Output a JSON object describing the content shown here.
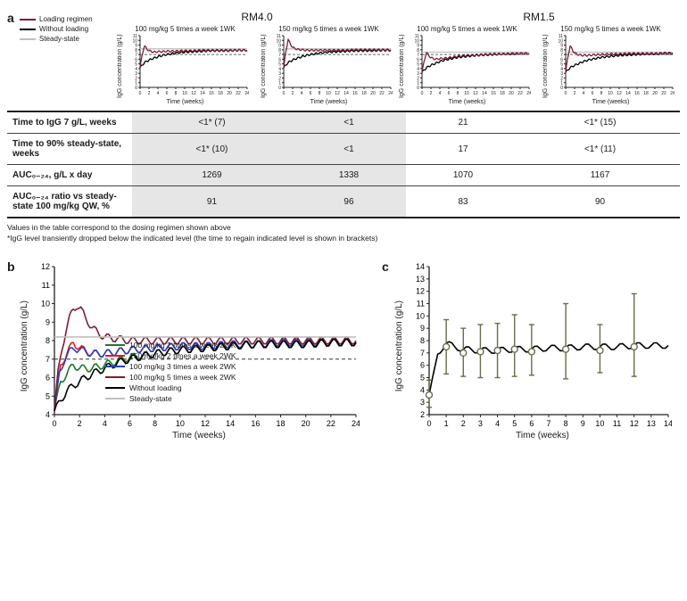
{
  "colors": {
    "loading": "#7a1f34",
    "no_loading": "#000000",
    "steady": "#bfbfbf",
    "dashed": "#333333",
    "axis": "#222222",
    "b_green": "#1a7a2d",
    "b_red": "#e11d1d",
    "b_blue": "#2a3fbf",
    "b_maroon": "#7a1f34",
    "b_grey": "#bfbfbf",
    "err": "#6b6b4b"
  },
  "panelA": {
    "label": "a",
    "legend": {
      "loading": "Loading regimen",
      "no_loading": "Without loading",
      "steady": "Steady-state"
    },
    "groups": [
      {
        "title": "RM4.0",
        "charts": [
          {
            "title": "100 mg/kg 5 times a week 1WK"
          },
          {
            "title": "150 mg/kg 5 times a week 1WK"
          }
        ]
      },
      {
        "title": "RM1.5",
        "charts": [
          {
            "title": "100 mg/kg 5 times a week 1WK"
          },
          {
            "title": "150 mg/kg 5 times a week 1WK"
          }
        ]
      }
    ],
    "miniChart": {
      "ylabel": "IgG concentration (g/L)",
      "xlabel": "Time (weeks)",
      "xlim": [
        0,
        24
      ],
      "xticks": [
        0,
        2,
        4,
        6,
        8,
        10,
        12,
        14,
        16,
        18,
        20,
        22,
        24
      ],
      "ylim": [
        0,
        11
      ],
      "yticks": [
        0,
        1,
        2,
        3,
        4,
        5,
        6,
        7,
        8,
        9,
        10,
        11
      ],
      "ref_line_y": 7
    },
    "series": {
      "rm40_100": {
        "loading": [
          [
            0,
            4.2
          ],
          [
            0.4,
            6.5
          ],
          [
            0.8,
            8.3
          ],
          [
            1,
            8.8
          ],
          [
            1.5,
            8.2
          ],
          [
            2,
            7.8
          ],
          [
            3,
            7.5
          ],
          [
            4,
            7.6
          ],
          [
            5,
            7.6
          ],
          [
            6,
            7.7
          ],
          [
            8,
            7.7
          ],
          [
            10,
            7.8
          ],
          [
            12,
            7.8
          ],
          [
            14,
            7.9
          ],
          [
            16,
            7.9
          ],
          [
            18,
            7.9
          ],
          [
            20,
            7.9
          ],
          [
            22,
            7.9
          ],
          [
            24,
            7.9
          ]
        ],
        "no_loading": [
          [
            0,
            4.2
          ],
          [
            1,
            5.3
          ],
          [
            2,
            5.8
          ],
          [
            3,
            6.2
          ],
          [
            4,
            6.5
          ],
          [
            5,
            6.8
          ],
          [
            6,
            7.0
          ],
          [
            8,
            7.3
          ],
          [
            10,
            7.5
          ],
          [
            12,
            7.6
          ],
          [
            14,
            7.7
          ],
          [
            16,
            7.8
          ],
          [
            18,
            7.8
          ],
          [
            20,
            7.8
          ],
          [
            22,
            7.9
          ],
          [
            24,
            7.9
          ]
        ],
        "steady": [
          [
            0,
            8.2
          ],
          [
            24,
            8.2
          ]
        ]
      },
      "rm40_150": {
        "loading": [
          [
            0,
            4.2
          ],
          [
            0.4,
            7.2
          ],
          [
            0.8,
            9.3
          ],
          [
            1,
            10.2
          ],
          [
            1.5,
            9.2
          ],
          [
            2,
            8.5
          ],
          [
            3,
            8.1
          ],
          [
            4,
            8.0
          ],
          [
            5,
            7.9
          ],
          [
            6,
            7.9
          ],
          [
            8,
            7.9
          ],
          [
            10,
            7.9
          ],
          [
            12,
            7.9
          ],
          [
            14,
            7.9
          ],
          [
            16,
            8.0
          ],
          [
            18,
            8.0
          ],
          [
            20,
            8.0
          ],
          [
            22,
            8.0
          ],
          [
            24,
            8.0
          ]
        ],
        "no_loading": [
          [
            0,
            4.2
          ],
          [
            1,
            5.3
          ],
          [
            2,
            5.8
          ],
          [
            3,
            6.2
          ],
          [
            4,
            6.5
          ],
          [
            5,
            6.8
          ],
          [
            6,
            7.0
          ],
          [
            8,
            7.3
          ],
          [
            10,
            7.5
          ],
          [
            12,
            7.6
          ],
          [
            14,
            7.7
          ],
          [
            16,
            7.8
          ],
          [
            18,
            7.8
          ],
          [
            20,
            7.8
          ],
          [
            22,
            7.9
          ],
          [
            24,
            7.9
          ]
        ],
        "steady": [
          [
            0,
            8.2
          ],
          [
            24,
            8.2
          ]
        ]
      },
      "rm15_100": {
        "loading": [
          [
            0,
            3.2
          ],
          [
            0.4,
            5.2
          ],
          [
            0.8,
            6.8
          ],
          [
            1,
            7.4
          ],
          [
            1.5,
            6.8
          ],
          [
            2,
            6.3
          ],
          [
            3,
            6.0
          ],
          [
            4,
            6.1
          ],
          [
            5,
            6.2
          ],
          [
            6,
            6.3
          ],
          [
            8,
            6.6
          ],
          [
            10,
            6.8
          ],
          [
            12,
            6.9
          ],
          [
            14,
            7.0
          ],
          [
            16,
            7.1
          ],
          [
            18,
            7.1
          ],
          [
            20,
            7.2
          ],
          [
            22,
            7.2
          ],
          [
            24,
            7.2
          ]
        ],
        "no_loading": [
          [
            0,
            3.2
          ],
          [
            1,
            4.2
          ],
          [
            2,
            4.7
          ],
          [
            3,
            5.1
          ],
          [
            4,
            5.5
          ],
          [
            5,
            5.8
          ],
          [
            6,
            6.0
          ],
          [
            8,
            6.4
          ],
          [
            10,
            6.6
          ],
          [
            12,
            6.8
          ],
          [
            14,
            6.9
          ],
          [
            16,
            7.0
          ],
          [
            18,
            7.1
          ],
          [
            20,
            7.1
          ],
          [
            22,
            7.2
          ],
          [
            24,
            7.2
          ]
        ],
        "steady": [
          [
            0,
            7.5
          ],
          [
            24,
            7.5
          ]
        ]
      },
      "rm15_150": {
        "loading": [
          [
            0,
            3.2
          ],
          [
            0.4,
            5.9
          ],
          [
            0.8,
            7.9
          ],
          [
            1,
            8.8
          ],
          [
            1.5,
            8.0
          ],
          [
            2,
            7.3
          ],
          [
            3,
            6.9
          ],
          [
            4,
            6.8
          ],
          [
            5,
            6.8
          ],
          [
            6,
            6.9
          ],
          [
            8,
            7.0
          ],
          [
            10,
            7.1
          ],
          [
            12,
            7.1
          ],
          [
            14,
            7.2
          ],
          [
            16,
            7.2
          ],
          [
            18,
            7.2
          ],
          [
            20,
            7.2
          ],
          [
            22,
            7.3
          ],
          [
            24,
            7.3
          ]
        ],
        "no_loading": [
          [
            0,
            3.2
          ],
          [
            1,
            4.2
          ],
          [
            2,
            4.7
          ],
          [
            3,
            5.1
          ],
          [
            4,
            5.5
          ],
          [
            5,
            5.8
          ],
          [
            6,
            6.0
          ],
          [
            8,
            6.4
          ],
          [
            10,
            6.6
          ],
          [
            12,
            6.8
          ],
          [
            14,
            6.9
          ],
          [
            16,
            7.0
          ],
          [
            18,
            7.1
          ],
          [
            20,
            7.1
          ],
          [
            22,
            7.2
          ],
          [
            24,
            7.2
          ]
        ],
        "steady": [
          [
            0,
            7.5
          ],
          [
            24,
            7.5
          ]
        ]
      }
    },
    "series_order": [
      "rm40_100",
      "rm40_150",
      "rm15_100",
      "rm15_150"
    ]
  },
  "table": {
    "rows": [
      {
        "label": "Time to IgG 7 g/L, weeks",
        "cells": [
          "<1* (7)",
          "<1",
          "21",
          "<1* (15)"
        ]
      },
      {
        "label": "Time to 90% steady-state, weeks",
        "cells": [
          "<1* (10)",
          "<1",
          "17",
          "<1* (11)"
        ]
      },
      {
        "label": "AUC₀₋₂₄, g/L x day",
        "cells": [
          "1269",
          "1338",
          "1070",
          "1167"
        ]
      },
      {
        "label": "AUC₀₋₂₄ ratio vs steady-state 100 mg/kg QW, %",
        "cells": [
          "91",
          "96",
          "83",
          "90"
        ]
      }
    ],
    "footnotes": [
      "Values in the table correspond to the dosing regimen shown above",
      "*IgG level transiently dropped below the indicated level (the time to regain indicated level is shown in brackets)"
    ]
  },
  "panelB": {
    "label": "b",
    "ylabel": "IgG concentration (g/L)",
    "xlabel": "Time (weeks)",
    "xlim": [
      0,
      24
    ],
    "xticks": [
      0,
      2,
      4,
      6,
      8,
      10,
      12,
      14,
      16,
      18,
      20,
      22,
      24
    ],
    "ylim": [
      4,
      12
    ],
    "yticks": [
      4,
      5,
      6,
      7,
      8,
      9,
      10,
      11,
      12
    ],
    "ref_line_y": 7,
    "legend": [
      {
        "color": "b_green",
        "label": "100 mg/kg 2 times a week 2WK"
      },
      {
        "color": "b_red",
        "label": "150 mg/kg 2 times a week 2WK"
      },
      {
        "color": "b_blue",
        "label": "100 mg/kg 3 times a week 2WK"
      },
      {
        "color": "b_maroon",
        "label": "100 mg/kg 5 times a week 2WK"
      },
      {
        "color": "no_loading",
        "label": "Without loading"
      },
      {
        "color": "b_grey",
        "label": "Steady-state"
      }
    ],
    "series": {
      "b_green": [
        [
          0,
          4.2
        ],
        [
          0.5,
          5.8
        ],
        [
          1,
          6.2
        ],
        [
          1.5,
          6.7
        ],
        [
          2,
          6.5
        ],
        [
          3,
          6.5
        ],
        [
          4,
          6.7
        ],
        [
          5,
          6.9
        ],
        [
          6,
          7.1
        ],
        [
          8,
          7.3
        ],
        [
          10,
          7.5
        ],
        [
          12,
          7.6
        ],
        [
          14,
          7.7
        ],
        [
          16,
          7.8
        ],
        [
          18,
          7.8
        ],
        [
          20,
          7.8
        ],
        [
          22,
          7.9
        ],
        [
          24,
          7.9
        ]
      ],
      "b_red": [
        [
          0,
          4.2
        ],
        [
          0.5,
          6.7
        ],
        [
          1,
          7.3
        ],
        [
          1.5,
          7.9
        ],
        [
          2,
          7.6
        ],
        [
          3,
          7.3
        ],
        [
          4,
          7.3
        ],
        [
          5,
          7.4
        ],
        [
          6,
          7.5
        ],
        [
          8,
          7.6
        ],
        [
          10,
          7.7
        ],
        [
          12,
          7.7
        ],
        [
          14,
          7.8
        ],
        [
          16,
          7.8
        ],
        [
          18,
          7.9
        ],
        [
          20,
          7.9
        ],
        [
          22,
          7.9
        ],
        [
          24,
          7.9
        ]
      ],
      "b_blue": [
        [
          0,
          4.2
        ],
        [
          0.4,
          6.2
        ],
        [
          0.8,
          7.0
        ],
        [
          1.2,
          7.4
        ],
        [
          1.6,
          7.6
        ],
        [
          2,
          7.5
        ],
        [
          3,
          7.3
        ],
        [
          4,
          7.3
        ],
        [
          5,
          7.4
        ],
        [
          6,
          7.5
        ],
        [
          8,
          7.6
        ],
        [
          10,
          7.7
        ],
        [
          12,
          7.7
        ],
        [
          14,
          7.8
        ],
        [
          16,
          7.8
        ],
        [
          18,
          7.9
        ],
        [
          20,
          7.9
        ],
        [
          22,
          7.9
        ],
        [
          24,
          7.9
        ]
      ],
      "b_maroon": [
        [
          0,
          4.2
        ],
        [
          0.3,
          6.3
        ],
        [
          0.6,
          7.6
        ],
        [
          0.9,
          8.5
        ],
        [
          1.2,
          9.2
        ],
        [
          1.5,
          9.7
        ],
        [
          1.8,
          9.9
        ],
        [
          2.1,
          9.7
        ],
        [
          2.5,
          9.2
        ],
        [
          3,
          8.7
        ],
        [
          3.5,
          8.4
        ],
        [
          4,
          8.2
        ],
        [
          5,
          8.1
        ],
        [
          6,
          8.0
        ],
        [
          8,
          8.0
        ],
        [
          10,
          8.0
        ],
        [
          12,
          8.0
        ],
        [
          14,
          8.0
        ],
        [
          16,
          8.0
        ],
        [
          18,
          8.0
        ],
        [
          20,
          8.0
        ],
        [
          22,
          8.0
        ],
        [
          24,
          8.0
        ]
      ],
      "no_loading": [
        [
          0,
          4.2
        ],
        [
          1,
          5.3
        ],
        [
          2,
          5.8
        ],
        [
          3,
          6.2
        ],
        [
          4,
          6.5
        ],
        [
          5,
          6.8
        ],
        [
          6,
          7.0
        ],
        [
          8,
          7.3
        ],
        [
          10,
          7.5
        ],
        [
          12,
          7.6
        ],
        [
          14,
          7.7
        ],
        [
          16,
          7.8
        ],
        [
          18,
          7.8
        ],
        [
          20,
          7.8
        ],
        [
          22,
          7.9
        ],
        [
          24,
          7.9
        ]
      ],
      "b_grey": [
        [
          0,
          8.2
        ],
        [
          24,
          8.2
        ]
      ]
    },
    "osc_amp": 0.2
  },
  "panelC": {
    "label": "c",
    "ylabel": "IgG concentration (g/L)",
    "xlabel": "Time (weeks)",
    "xlim": [
      0,
      14
    ],
    "xticks": [
      0,
      1,
      2,
      3,
      4,
      5,
      6,
      7,
      8,
      9,
      10,
      11,
      12,
      13,
      14
    ],
    "ylim": [
      2,
      14
    ],
    "yticks": [
      2,
      3,
      4,
      5,
      6,
      7,
      8,
      9,
      10,
      11,
      12,
      13,
      14
    ],
    "line": [
      [
        0,
        3.6
      ],
      [
        0.3,
        5.4
      ],
      [
        0.5,
        6.9
      ],
      [
        0.8,
        7.5
      ],
      [
        1,
        7.8
      ],
      [
        1.5,
        7.5
      ],
      [
        2,
        7.3
      ],
      [
        3,
        7.2
      ],
      [
        4,
        7.2
      ],
      [
        5,
        7.3
      ],
      [
        6,
        7.3
      ],
      [
        7,
        7.4
      ],
      [
        8,
        7.4
      ],
      [
        9,
        7.5
      ],
      [
        10,
        7.5
      ],
      [
        11,
        7.5
      ],
      [
        12,
        7.6
      ],
      [
        13,
        7.6
      ],
      [
        14,
        7.6
      ]
    ],
    "osc_amp": 0.25,
    "points": [
      {
        "x": 0,
        "y": 3.6,
        "lo": 2.6,
        "hi": 4.8
      },
      {
        "x": 1,
        "y": 7.5,
        "lo": 5.3,
        "hi": 9.7
      },
      {
        "x": 2,
        "y": 7.0,
        "lo": 5.1,
        "hi": 9.0
      },
      {
        "x": 3,
        "y": 7.1,
        "lo": 5.0,
        "hi": 9.3
      },
      {
        "x": 4,
        "y": 7.2,
        "lo": 5.0,
        "hi": 9.4
      },
      {
        "x": 5,
        "y": 7.3,
        "lo": 5.1,
        "hi": 10.1
      },
      {
        "x": 6,
        "y": 7.1,
        "lo": 5.2,
        "hi": 9.3
      },
      {
        "x": 8,
        "y": 7.3,
        "lo": 4.9,
        "hi": 11.0
      },
      {
        "x": 10,
        "y": 7.2,
        "lo": 5.4,
        "hi": 9.3
      },
      {
        "x": 12,
        "y": 7.5,
        "lo": 5.1,
        "hi": 11.8
      }
    ]
  }
}
